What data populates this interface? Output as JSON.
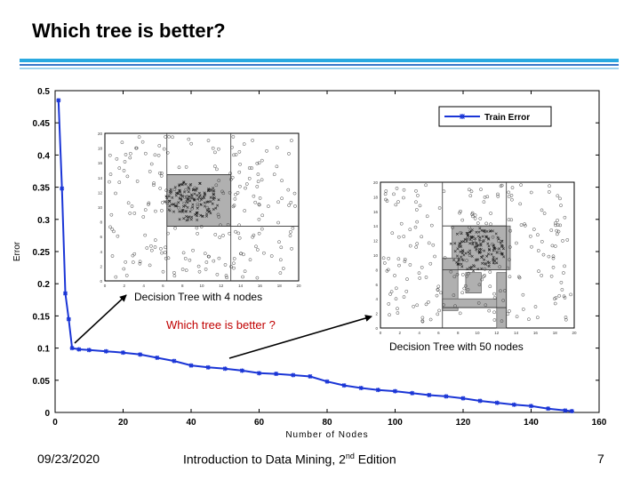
{
  "slide": {
    "title": "Which tree is better?",
    "footer_date": "09/23/2020",
    "footer_course_pre": "Introduction to Data Mining, 2",
    "footer_course_sup": "nd",
    "footer_course_post": " Edition",
    "page_number": "7"
  },
  "colors": {
    "series": "#1a35d6",
    "accent_bar": "#2aa9e0",
    "inset_highlight": "#b0b0b0"
  },
  "chart_data": {
    "type": "line",
    "title": "",
    "xlabel": "Number of Nodes",
    "ylabel": "Error",
    "xlim": [
      0,
      160
    ],
    "ylim": [
      0,
      0.5
    ],
    "xticks": [
      0,
      20,
      40,
      60,
      80,
      100,
      120,
      140,
      160
    ],
    "yticks": [
      0,
      0.05,
      0.1,
      0.15,
      0.2,
      0.25,
      0.3,
      0.35,
      0.4,
      0.45,
      0.5
    ],
    "legend_position": "top-right",
    "grid": false,
    "series": [
      {
        "name": "Train Error",
        "x": [
          1,
          2,
          3,
          4,
          5,
          7,
          10,
          15,
          20,
          25,
          30,
          35,
          40,
          45,
          50,
          55,
          60,
          65,
          70,
          75,
          80,
          85,
          90,
          95,
          100,
          105,
          110,
          115,
          120,
          125,
          130,
          135,
          140,
          145,
          150,
          152
        ],
        "y": [
          0.485,
          0.348,
          0.185,
          0.145,
          0.1,
          0.098,
          0.097,
          0.095,
          0.093,
          0.09,
          0.085,
          0.08,
          0.073,
          0.07,
          0.068,
          0.065,
          0.061,
          0.06,
          0.058,
          0.056,
          0.048,
          0.042,
          0.038,
          0.035,
          0.033,
          0.03,
          0.027,
          0.025,
          0.022,
          0.018,
          0.015,
          0.012,
          0.01,
          0.006,
          0.003,
          0.002
        ]
      }
    ],
    "annotations": {
      "small_tree": "Decision Tree with 4 nodes",
      "question": "Which tree is better ?",
      "large_tree": "Decision Tree with 50 nodes"
    }
  },
  "insets": {
    "small": {
      "yticks": [
        "0",
        "2",
        "4",
        "6",
        "8",
        "10",
        "12",
        "14",
        "16",
        "18",
        "20"
      ],
      "xticks": [
        "0",
        "2",
        "4",
        "6",
        "8",
        "10",
        "12",
        "14",
        "16",
        "18",
        "20"
      ]
    },
    "large": {
      "yticks": [
        "0",
        "2",
        "4",
        "6",
        "8",
        "10",
        "12",
        "14",
        "16",
        "18",
        "20"
      ],
      "xticks": [
        "0",
        "2",
        "4",
        "6",
        "8",
        "10",
        "12",
        "14",
        "16",
        "18",
        "20"
      ]
    }
  }
}
